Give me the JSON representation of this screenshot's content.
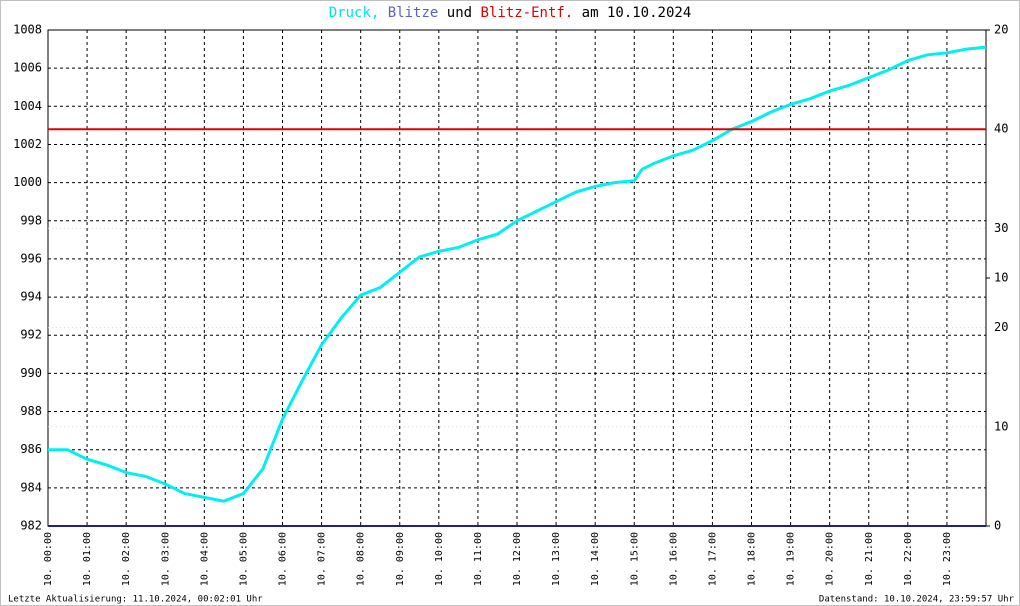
{
  "chart_data": {
    "type": "line",
    "title_parts": [
      {
        "text": "Druck,",
        "color": "#00e5e5"
      },
      {
        "text": "Blitze",
        "color": "#6060c0"
      },
      {
        "text": "und",
        "color": "#000000"
      },
      {
        "text": "Blitz-Entf.",
        "color": "#e00000"
      },
      {
        "text": "am 10.10.2024",
        "color": "#000000"
      }
    ],
    "xlim": [
      0,
      24
    ],
    "xticks": [
      {
        "value": 0,
        "label": "10. 00:00"
      },
      {
        "value": 1,
        "label": "10. 01:00"
      },
      {
        "value": 2,
        "label": "10. 02:00"
      },
      {
        "value": 3,
        "label": "10. 03:00"
      },
      {
        "value": 4,
        "label": "10. 04:00"
      },
      {
        "value": 5,
        "label": "10. 05:00"
      },
      {
        "value": 6,
        "label": "10. 06:00"
      },
      {
        "value": 7,
        "label": "10. 07:00"
      },
      {
        "value": 8,
        "label": "10. 08:00"
      },
      {
        "value": 9,
        "label": "10. 09:00"
      },
      {
        "value": 10,
        "label": "10. 10:00"
      },
      {
        "value": 11,
        "label": "10. 11:00"
      },
      {
        "value": 12,
        "label": "10. 12:00"
      },
      {
        "value": 13,
        "label": "10. 13:00"
      },
      {
        "value": 14,
        "label": "10. 14:00"
      },
      {
        "value": 15,
        "label": "10. 15:00"
      },
      {
        "value": 16,
        "label": "10. 16:00"
      },
      {
        "value": 17,
        "label": "10. 17:00"
      },
      {
        "value": 18,
        "label": "10. 18:00"
      },
      {
        "value": 19,
        "label": "10. 19:00"
      },
      {
        "value": 20,
        "label": "10. 20:00"
      },
      {
        "value": 21,
        "label": "10. 21:00"
      },
      {
        "value": 22,
        "label": "10. 22:00"
      },
      {
        "value": 23,
        "label": "10. 23:00"
      }
    ],
    "ylim": [
      982,
      1008
    ],
    "yticks": [
      982,
      984,
      986,
      988,
      990,
      992,
      994,
      996,
      998,
      1000,
      1002,
      1004,
      1006,
      1008
    ],
    "y2lim": [
      0,
      20
    ],
    "y2ticks": [
      0,
      10,
      20
    ],
    "y3lim": [
      0,
      50
    ],
    "y3ticks": [
      10,
      20,
      30,
      40
    ],
    "grid": true,
    "series": [
      {
        "color": "#00f0f0",
        "axis": "y",
        "x": [
          0,
          0.5,
          1,
          1.5,
          2,
          2.5,
          3,
          3.5,
          4,
          4.5,
          5,
          5.5,
          6,
          6.5,
          7,
          7.5,
          8,
          8.5,
          9,
          9.5,
          10,
          10.5,
          11,
          11.5,
          12,
          12.5,
          13,
          13.5,
          14,
          14.5,
          15,
          15.2,
          15.5,
          16,
          16.5,
          17,
          17.5,
          18,
          18.5,
          19,
          19.5,
          20,
          20.5,
          21,
          21.5,
          22,
          22.5,
          23,
          23.5,
          24
        ],
        "values": [
          986.0,
          986.0,
          985.5,
          985.2,
          984.8,
          984.6,
          984.2,
          983.7,
          983.5,
          983.3,
          983.7,
          985.0,
          987.6,
          989.6,
          991.5,
          992.9,
          994.1,
          994.5,
          995.3,
          996.1,
          996.4,
          996.6,
          997.0,
          997.3,
          998.0,
          998.5,
          999.0,
          999.5,
          999.8,
          1000.0,
          1000.1,
          1000.7,
          1001.0,
          1001.4,
          1001.7,
          1002.2,
          1002.8,
          1003.2,
          1003.7,
          1004.1,
          1004.4,
          1004.8,
          1005.1,
          1005.5,
          1005.9,
          1006.4,
          1006.7,
          1006.8,
          1007.0,
          1007.1
        ]
      },
      {
        "color": "#202080",
        "axis": "y2",
        "x": [
          0,
          24
        ],
        "values": [
          0,
          0
        ]
      },
      {
        "color": "#e00000",
        "axis": "y3",
        "x": [
          0,
          24
        ],
        "values": [
          40,
          40
        ]
      }
    ],
    "footer_left": "Letzte Aktualisierung: 11.10.2024, 00:02:01 Uhr",
    "footer_right": "Datenstand: 10.10.2024, 23:59:57 Uhr"
  }
}
